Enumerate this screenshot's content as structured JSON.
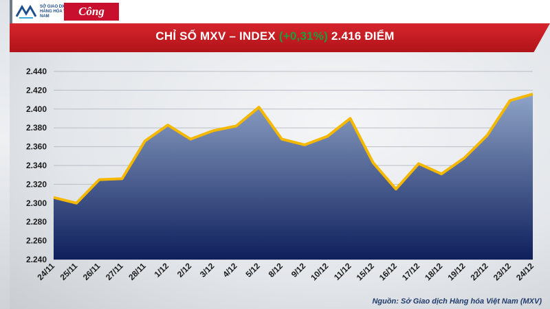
{
  "header": {
    "logo_left_text": "SỞ GIAO DỊCH HÀNG HÓA VIỆT NAM",
    "logo_right_text": "Công Thương",
    "title_prefix": "CHỈ SỐ MXV – INDEX ",
    "title_change": "(+0,31%)",
    "title_suffix": " 2.416 ĐIỂM"
  },
  "colors": {
    "accent_red": "#c8102e",
    "change_green": "#1f9d3a",
    "line": "#f5b800",
    "area_top": "#8fa4c7",
    "area_bottom": "#0e1f5c"
  },
  "source": "Nguồn: Sở Giao dịch Hàng hóa Việt Nam (MXV)",
  "chart_data": {
    "type": "area",
    "title": "CHỈ SỐ MXV – INDEX (+0,31%) 2.416 ĐIỂM",
    "categories": [
      "24/11",
      "25/11",
      "26/11",
      "27/11",
      "28/11",
      "1/12",
      "2/12",
      "3/12",
      "4/12",
      "5/12",
      "8/12",
      "9/12",
      "10/12",
      "11/12",
      "15/12",
      "16/12",
      "17/12",
      "18/12",
      "19/12",
      "22/12",
      "23/12",
      "24/12"
    ],
    "series": [
      {
        "values": [
          2306,
          2300,
          2325,
          2326,
          2366,
          2383,
          2368,
          2377,
          2382,
          2402,
          2368,
          2362,
          2371,
          2390,
          2343,
          2315,
          2342,
          2331,
          2348,
          2372,
          2409,
          2416
        ]
      }
    ],
    "ylim": [
      2240,
      2440
    ],
    "yticks": [
      "2.240",
      "2.260",
      "2.280",
      "2.300",
      "2.320",
      "2.340",
      "2.360",
      "2.380",
      "2.400",
      "2.420",
      "2.440"
    ],
    "ytick_values": [
      2240,
      2260,
      2280,
      2300,
      2320,
      2340,
      2360,
      2380,
      2400,
      2420,
      2440
    ],
    "grid": true,
    "legend": "none"
  }
}
